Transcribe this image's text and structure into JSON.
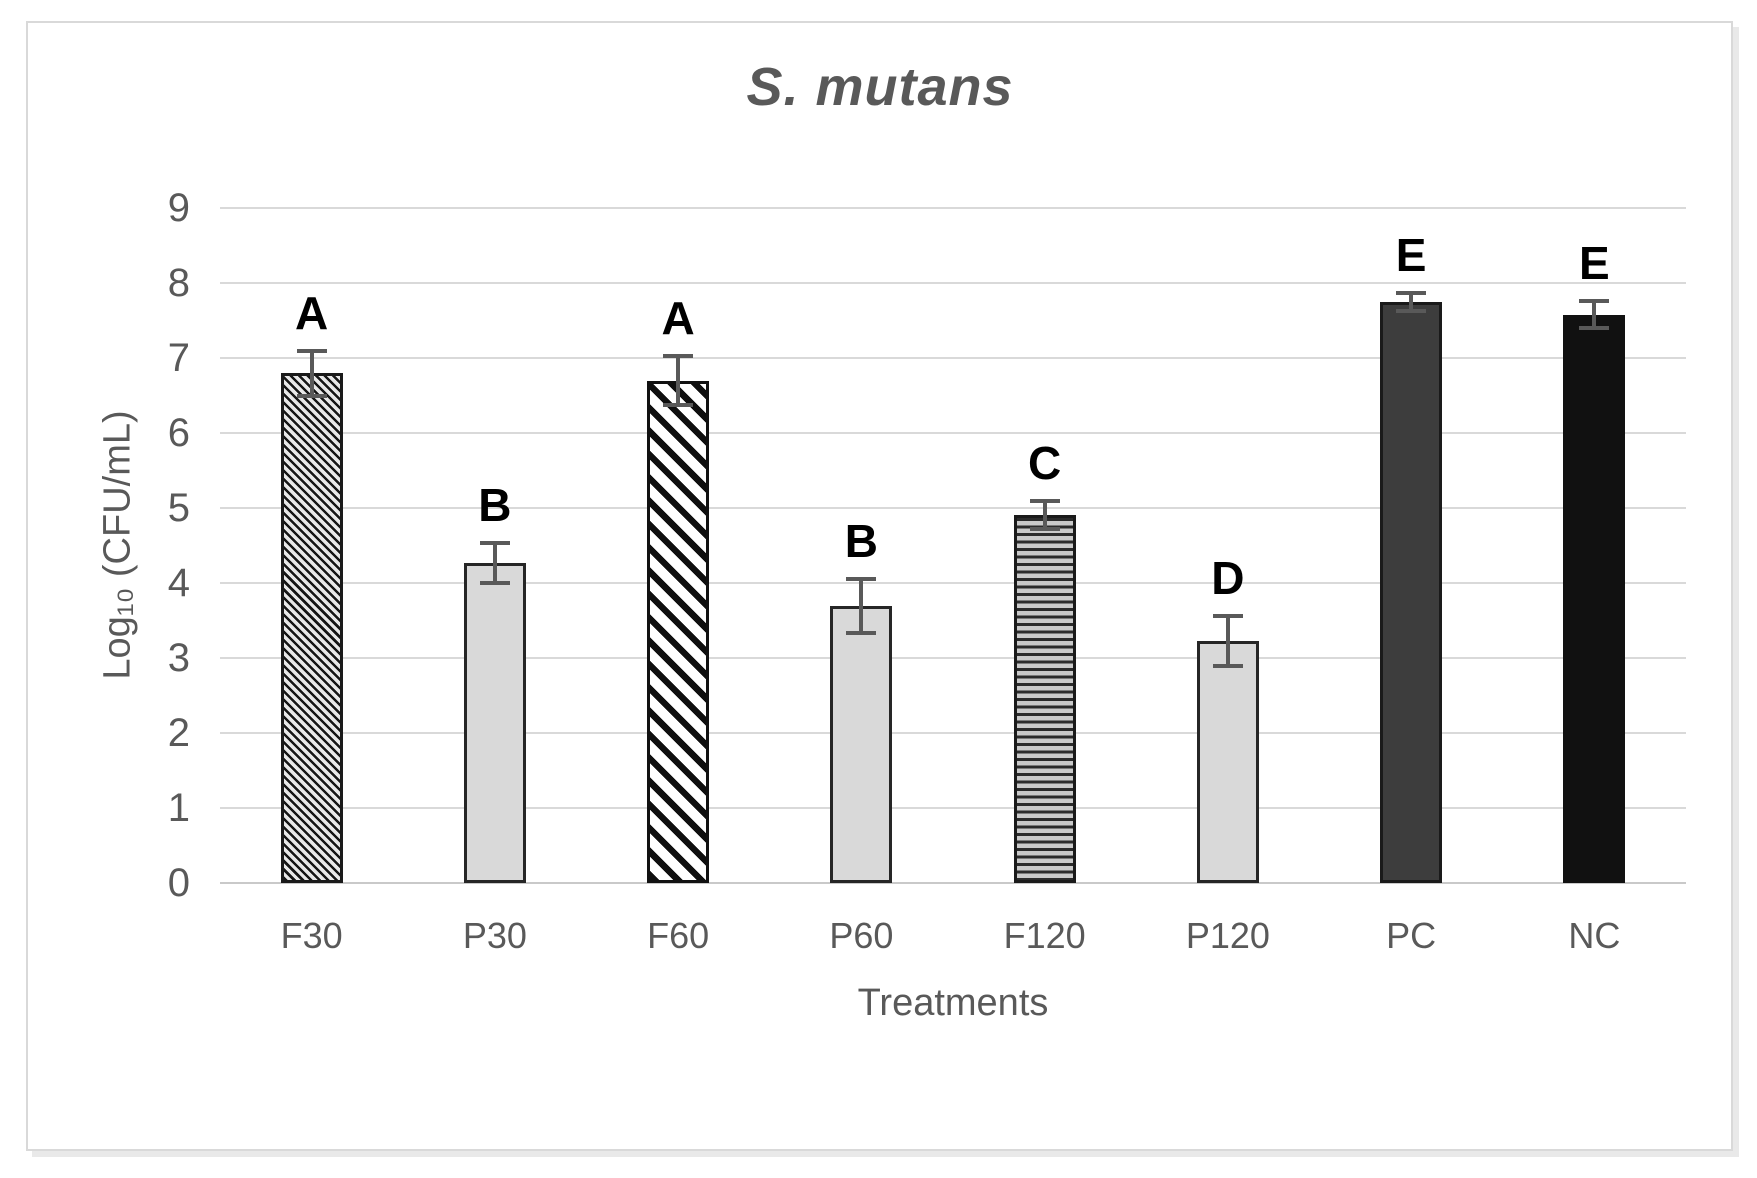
{
  "chart_data": {
    "type": "bar",
    "title": "S. mutans",
    "xlabel": "Treatments",
    "ylabel": "Log₁₀ (CFU/mL)",
    "ylim": [
      0,
      9
    ],
    "yticks": [
      0,
      1,
      2,
      3,
      4,
      5,
      6,
      7,
      8,
      9
    ],
    "grid": "horizontal",
    "legend": "none",
    "categories": [
      "F30",
      "P30",
      "F60",
      "P60",
      "F120",
      "P120",
      "PC",
      "NC"
    ],
    "values": [
      6.8,
      4.27,
      6.7,
      3.7,
      4.91,
      3.23,
      7.75,
      7.58
    ],
    "errors": [
      0.3,
      0.27,
      0.33,
      0.36,
      0.19,
      0.33,
      0.12,
      0.18
    ],
    "significance_letters": [
      "A",
      "B",
      "A",
      "B",
      "C",
      "D",
      "E",
      "E"
    ],
    "bar_styles": [
      {
        "pattern": "diagonal-hatch-dense",
        "fill": "#e8e8e8",
        "stroke": "#1a1a1a"
      },
      {
        "pattern": "solid",
        "fill": "#d9d9d9",
        "stroke": "#262626"
      },
      {
        "pattern": "diagonal-stripe-wide",
        "fill": "#ffffff",
        "stroke": "#111111"
      },
      {
        "pattern": "solid",
        "fill": "#d9d9d9",
        "stroke": "#262626"
      },
      {
        "pattern": "horizontal-stripe",
        "fill": "#c9c9c9",
        "stroke": "#1a1a1a"
      },
      {
        "pattern": "solid",
        "fill": "#d9d9d9",
        "stroke": "#262626"
      },
      {
        "pattern": "solid",
        "fill": "#3d3d3d",
        "stroke": "#1a1a1a"
      },
      {
        "pattern": "solid",
        "fill": "#111111",
        "stroke": "#111111"
      }
    ],
    "colors": {
      "grid": "#d9d9d9",
      "axis_text": "#595959",
      "title_text": "#595959",
      "letter_text": "#000000",
      "error_bar": "#595959",
      "frame_border": "#d9d9d9"
    }
  }
}
